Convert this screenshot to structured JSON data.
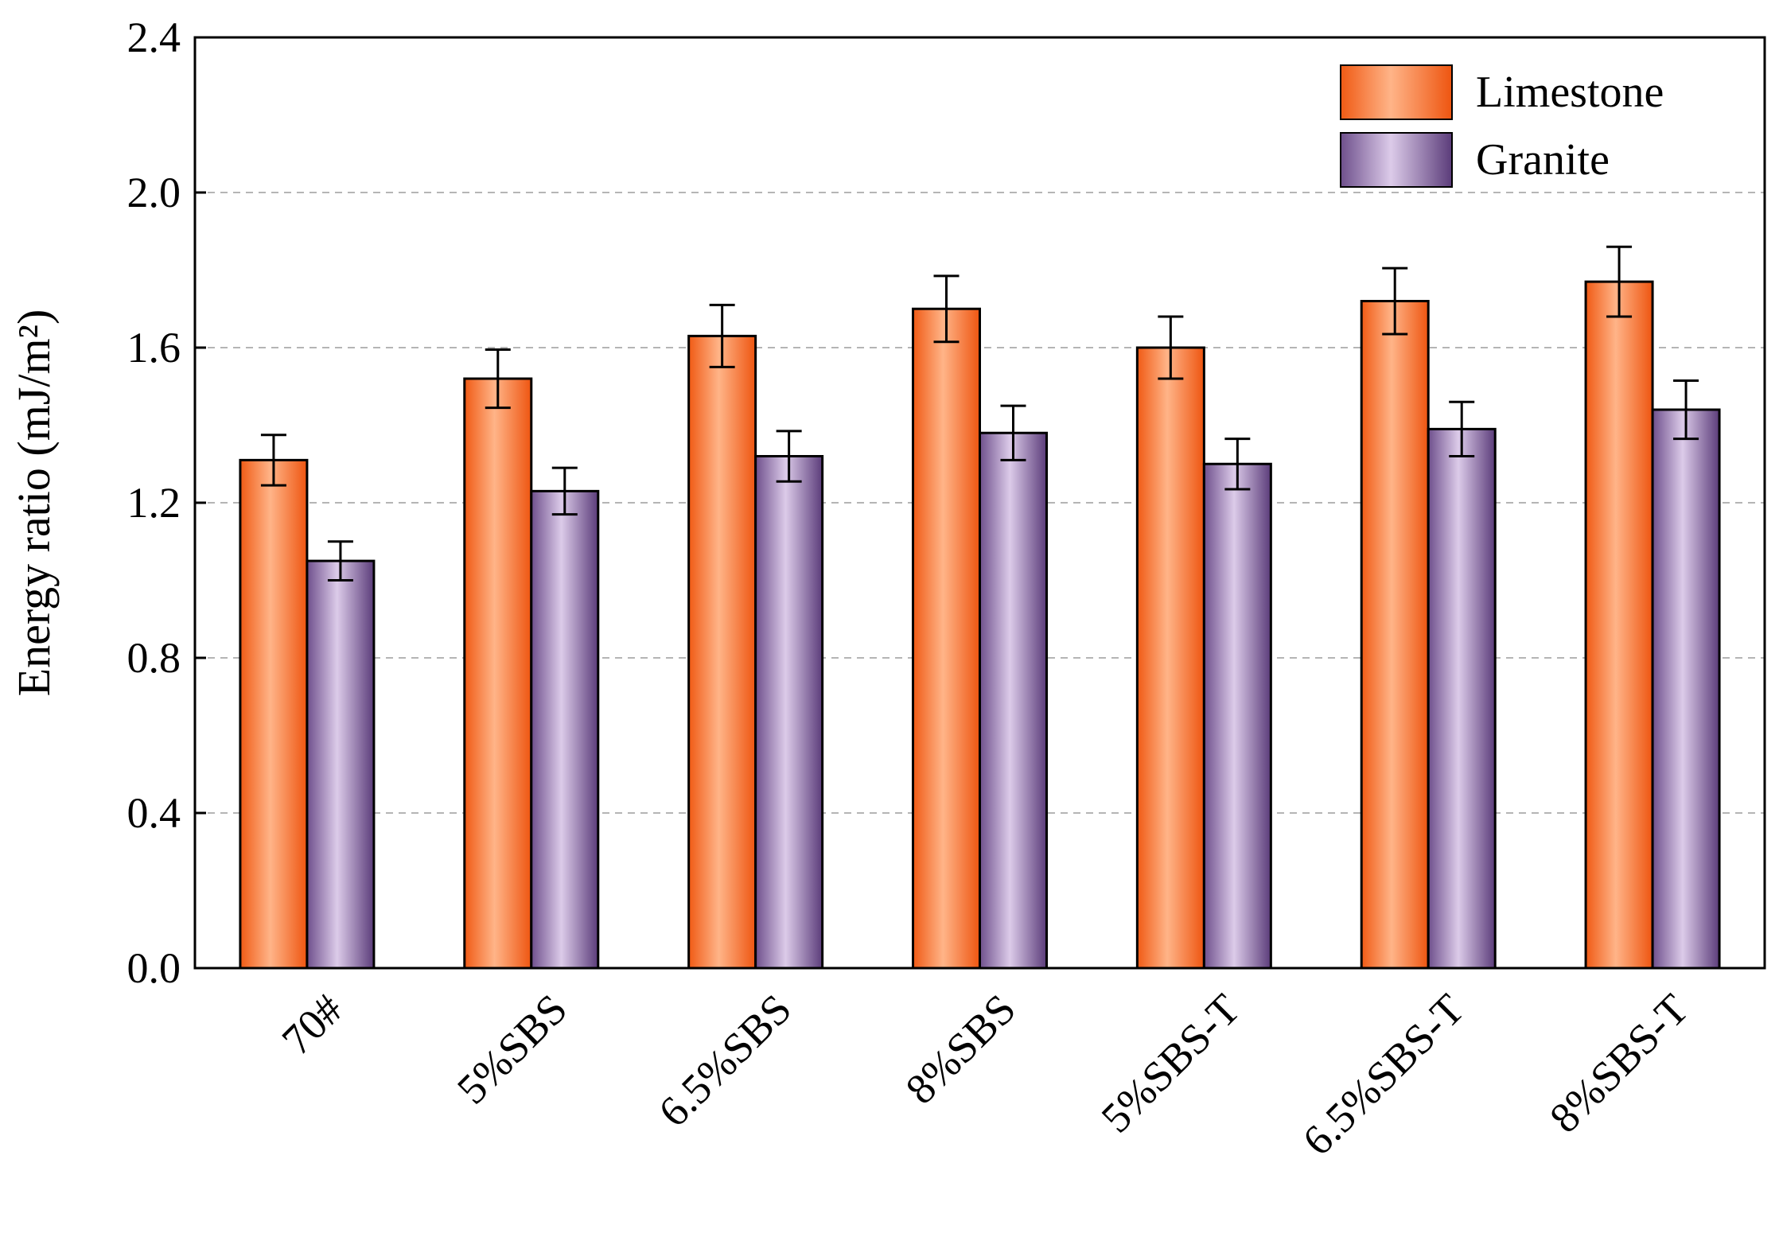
{
  "chart_data": {
    "type": "bar",
    "title": "",
    "xlabel": "",
    "ylabel": "Energy ratio (mJ/m²)",
    "ylim": [
      0,
      2.4
    ],
    "yticks": [
      "0.0",
      "0.4",
      "0.8",
      "1.2",
      "1.6",
      "2.0",
      "2.4"
    ],
    "grid": "horizontal dashed",
    "legend_position": "top-right",
    "categories": [
      "70#",
      "5%SBS",
      "6.5%SBS",
      "8%SBS",
      "5%SBS-T",
      "6.5%SBS-T",
      "8%SBS-T"
    ],
    "series": [
      {
        "name": "Limestone",
        "color": "#f26b1d",
        "values": [
          1.31,
          1.52,
          1.63,
          1.7,
          1.6,
          1.72,
          1.77
        ],
        "errors": [
          0.065,
          0.075,
          0.08,
          0.085,
          0.08,
          0.085,
          0.09
        ]
      },
      {
        "name": "Granite",
        "color": "#7a5a95",
        "values": [
          1.05,
          1.23,
          1.32,
          1.38,
          1.3,
          1.39,
          1.44
        ],
        "errors": [
          0.05,
          0.06,
          0.065,
          0.07,
          0.065,
          0.07,
          0.075
        ]
      }
    ]
  }
}
